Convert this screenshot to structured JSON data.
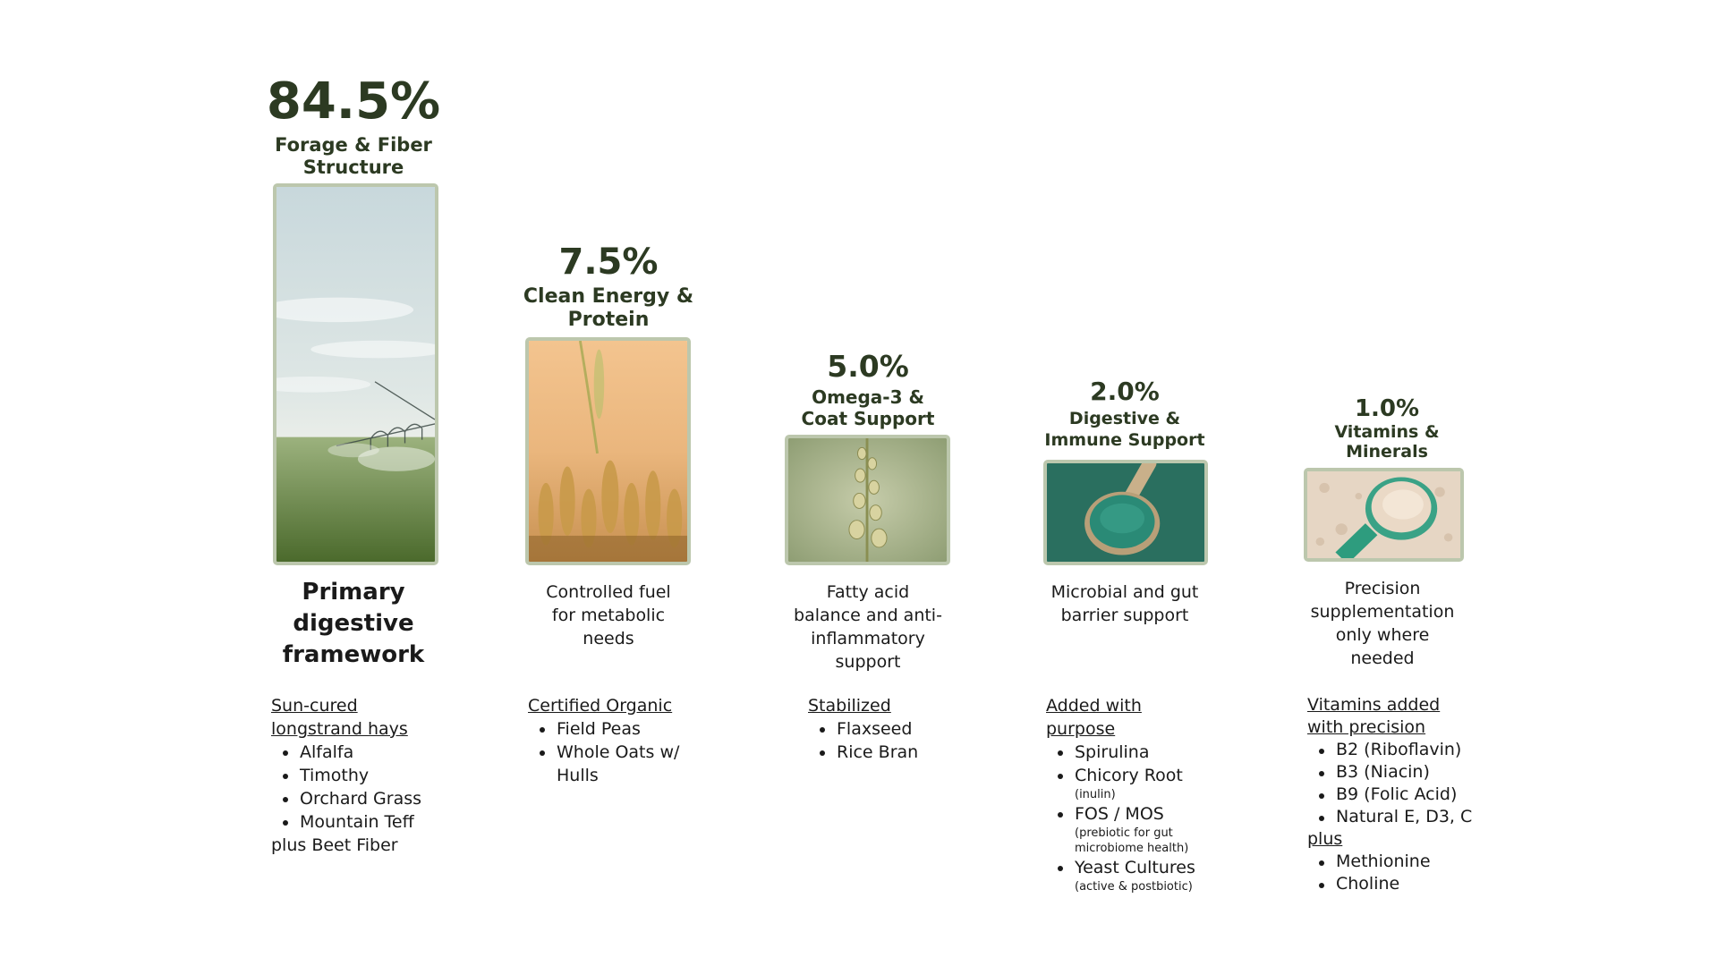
{
  "chart_data": {
    "type": "bar",
    "title": "",
    "xlabel": "",
    "ylabel": "",
    "ylim": [
      0,
      100
    ],
    "categories": [
      "Forage & Fiber Structure",
      "Clean Energy & Protein",
      "Omega-3 & Coat Support",
      "Digestive & Immune Support",
      "Vitamins & Minerals"
    ],
    "values": [
      84.5,
      7.5,
      5.0,
      2.0,
      1.0
    ],
    "value_labels": [
      "84.5%",
      "7.5%",
      "5.0%",
      "2.0%",
      "1.0%"
    ],
    "category_lines": [
      [
        "Forage & Fiber",
        "Structure"
      ],
      [
        "Clean Energy &",
        "Protein"
      ],
      [
        "Omega-3 &",
        "Coat Support"
      ],
      [
        "Digestive &",
        "Immune Support"
      ],
      [
        "Vitamins &",
        "Minerals"
      ]
    ],
    "bar_images": [
      "irrigated-field-photo",
      "wheat-field-photo",
      "flaxseed-plant-photo",
      "spirulina-spoon-photo",
      "mineral-powder-scoop-photo"
    ],
    "colors": {
      "value_text": "#2c3a22",
      "bar_border": "#bcc7ad"
    }
  },
  "columns": [
    {
      "desc_lines": [
        "Primary",
        "digestive",
        "framework"
      ],
      "list_head_lines": [
        "Sun-cured",
        "longstrand hays"
      ],
      "items": [
        "Alfalfa",
        "Timothy",
        "Orchard Grass",
        "Mountain Teff"
      ],
      "footer": "plus Beet Fiber"
    },
    {
      "desc_lines": [
        "Controlled fuel",
        "for metabolic",
        "needs"
      ],
      "list_head_lines": [
        "Certified Organic"
      ],
      "items": [
        "Field Peas",
        "Whole Oats w/",
        "Hulls"
      ]
    },
    {
      "desc_lines": [
        "Fatty acid",
        "balance and anti-",
        "inflammatory",
        "support"
      ],
      "list_head_lines": [
        "Stabilized"
      ],
      "items": [
        "Flaxseed",
        "Rice Bran"
      ]
    },
    {
      "desc_lines": [
        "Microbial and gut",
        "barrier support"
      ],
      "list_head_lines": [
        "Added with",
        "purpose"
      ],
      "items": [
        "Spirulina",
        "Chicory Root",
        "FOS / MOS",
        "Yeast Cultures"
      ],
      "notes": [
        "",
        "(inulin)",
        "(prebiotic for gut microbiome health)",
        "(active & postbiotic)"
      ]
    },
    {
      "desc_lines": [
        "Precision",
        "supplementation",
        "only where",
        "needed"
      ],
      "list_head_lines": [
        "Vitamins added",
        "with precision"
      ],
      "items": [
        "B2 (Riboflavin)",
        "B3 (Niacin)",
        "B9 (Folic Acid)",
        "Natural E, D3, C"
      ],
      "mid_label": "plus",
      "items2": [
        "Methionine",
        "Choline"
      ]
    }
  ]
}
